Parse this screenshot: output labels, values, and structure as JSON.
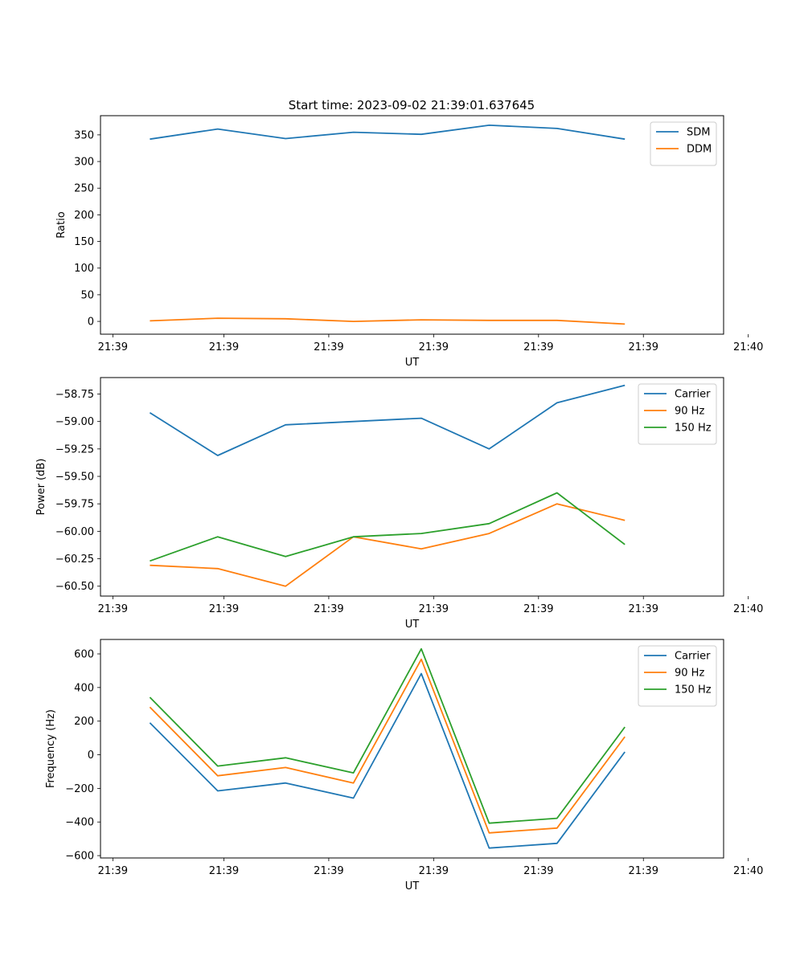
{
  "figure_title": "Start time: 2023-09-02 21:39:01.637645",
  "chart_data": [
    {
      "type": "line",
      "title": "Start time: 2023-09-02 21:39:01.637645",
      "xlabel": "UT",
      "ylabel": "Ratio",
      "x_seconds": [
        3.1,
        4.2,
        5.3,
        6.4,
        7.5,
        8.6,
        9.7,
        10.8
      ],
      "xlim": [
        2.3,
        12.4
      ],
      "xticks": [
        2.5,
        4.3,
        6.0,
        7.7,
        9.4,
        11.1,
        12.8
      ],
      "xtick_labels": [
        "21:39",
        "21:39",
        "21:39",
        "21:39",
        "21:39",
        "21:39",
        "21:40"
      ],
      "ylim": [
        -24,
        386
      ],
      "yticks": [
        0,
        50,
        100,
        150,
        200,
        250,
        300,
        350
      ],
      "ytick_labels": [
        "0",
        "50",
        "100",
        "150",
        "200",
        "250",
        "300",
        "350"
      ],
      "legend_position": "top-right",
      "series": [
        {
          "name": "SDM",
          "color": "#1f77b4",
          "values": [
            342,
            361,
            343,
            355,
            351,
            368,
            362,
            342
          ]
        },
        {
          "name": "DDM",
          "color": "#ff7f0e",
          "values": [
            1,
            6,
            5,
            0,
            3,
            2,
            2,
            -5
          ]
        }
      ]
    },
    {
      "type": "line",
      "title": "",
      "xlabel": "UT",
      "ylabel": "Power (dB)",
      "x_seconds": [
        3.1,
        4.2,
        5.3,
        6.4,
        7.5,
        8.6,
        9.7,
        10.8
      ],
      "xlim": [
        2.3,
        12.4
      ],
      "xticks": [
        2.5,
        4.3,
        6.0,
        7.7,
        9.4,
        11.1,
        12.8
      ],
      "xtick_labels": [
        "21:39",
        "21:39",
        "21:39",
        "21:39",
        "21:39",
        "21:39",
        "21:40"
      ],
      "ylim": [
        -60.59,
        -58.6
      ],
      "yticks": [
        -60.5,
        -60.25,
        -60.0,
        -59.75,
        -59.5,
        -59.25,
        -59.0,
        -58.75
      ],
      "ytick_labels": [
        "−60.50",
        "−60.25",
        "−60.00",
        "−59.75",
        "−59.50",
        "−59.25",
        "−59.00",
        "−58.75"
      ],
      "legend_position": "top-right",
      "series": [
        {
          "name": "Carrier",
          "color": "#1f77b4",
          "values": [
            -58.92,
            -59.31,
            -59.03,
            -59.0,
            -58.97,
            -59.25,
            -58.83,
            -58.67
          ]
        },
        {
          "name": "90 Hz",
          "color": "#ff7f0e",
          "values": [
            -60.31,
            -60.34,
            -60.5,
            -60.05,
            -60.16,
            -60.02,
            -59.75,
            -59.9
          ]
        },
        {
          "name": "150 Hz",
          "color": "#2ca02c",
          "values": [
            -60.27,
            -60.05,
            -60.23,
            -60.05,
            -60.02,
            -59.93,
            -59.65,
            -60.12
          ]
        }
      ]
    },
    {
      "type": "line",
      "title": "",
      "xlabel": "UT",
      "ylabel": "Frequency (Hz)",
      "x_seconds": [
        3.1,
        4.2,
        5.3,
        6.4,
        7.5,
        8.6,
        9.7,
        10.8
      ],
      "xlim": [
        2.3,
        12.4
      ],
      "xticks": [
        2.5,
        4.3,
        6.0,
        7.7,
        9.4,
        11.1,
        12.8
      ],
      "xtick_labels": [
        "21:39",
        "21:39",
        "21:39",
        "21:39",
        "21:39",
        "21:39",
        "21:40"
      ],
      "ylim": [
        -614,
        686
      ],
      "yticks": [
        -600,
        -400,
        -200,
        0,
        200,
        400,
        600
      ],
      "ytick_labels": [
        "−600",
        "−400",
        "−200",
        "0",
        "200",
        "400",
        "600"
      ],
      "legend_position": "top-right",
      "series": [
        {
          "name": "Carrier",
          "color": "#1f77b4",
          "values": [
            190,
            -215,
            -168,
            -258,
            483,
            -555,
            -527,
            17
          ]
        },
        {
          "name": "90 Hz",
          "color": "#ff7f0e",
          "values": [
            283,
            -125,
            -76,
            -168,
            568,
            -465,
            -436,
            107
          ]
        },
        {
          "name": "150 Hz",
          "color": "#2ca02c",
          "values": [
            342,
            -67,
            -18,
            -108,
            630,
            -407,
            -378,
            165
          ]
        }
      ]
    }
  ]
}
